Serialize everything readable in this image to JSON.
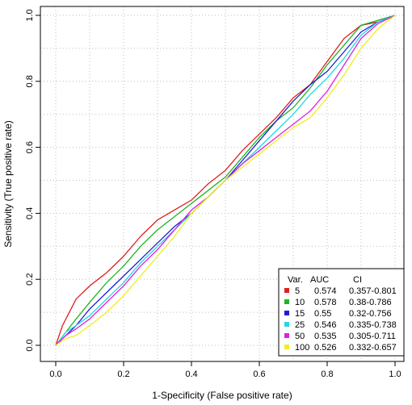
{
  "chart_data": {
    "type": "line",
    "xlabel": "1-Specificity (False positive rate)",
    "ylabel": "Sensitivity (True positive rate)",
    "xlim": [
      0,
      1
    ],
    "ylim": [
      0,
      1
    ],
    "xticks": [
      0.0,
      0.2,
      0.4,
      0.6,
      0.8,
      1.0
    ],
    "yticks": [
      0.0,
      0.2,
      0.4,
      0.6,
      0.8,
      1.0
    ],
    "xtick_labels": [
      "0.0",
      "0.2",
      "0.4",
      "0.6",
      "0.8",
      "1.0"
    ],
    "ytick_labels": [
      "0.0",
      "0.2",
      "0.4",
      "0.6",
      "0.8",
      "1.0"
    ],
    "grid": true,
    "legend": {
      "placement": "bottom-right",
      "header": {
        "var": "Var.",
        "auc": "AUC",
        "ci": "CI"
      }
    },
    "series": [
      {
        "name": "5",
        "auc": "0.574",
        "ci": "0.357-0.801",
        "color": "#DF1F1F",
        "x": [
          0,
          0.02,
          0.04,
          0.06,
          0.1,
          0.15,
          0.2,
          0.25,
          0.3,
          0.35,
          0.4,
          0.45,
          0.5,
          0.55,
          0.6,
          0.65,
          0.7,
          0.75,
          0.8,
          0.85,
          0.9,
          0.95,
          1.0
        ],
        "y": [
          0,
          0.06,
          0.1,
          0.14,
          0.18,
          0.22,
          0.27,
          0.33,
          0.38,
          0.41,
          0.44,
          0.49,
          0.53,
          0.59,
          0.64,
          0.69,
          0.75,
          0.79,
          0.86,
          0.93,
          0.97,
          0.98,
          1.0
        ]
      },
      {
        "name": "10",
        "auc": "0.578",
        "ci": "0.38-0.786",
        "color": "#22B322",
        "x": [
          0,
          0.03,
          0.06,
          0.1,
          0.15,
          0.2,
          0.25,
          0.3,
          0.35,
          0.4,
          0.45,
          0.5,
          0.55,
          0.6,
          0.65,
          0.7,
          0.75,
          0.8,
          0.85,
          0.9,
          0.95,
          1.0
        ],
        "y": [
          0,
          0.04,
          0.08,
          0.13,
          0.19,
          0.24,
          0.3,
          0.35,
          0.39,
          0.43,
          0.47,
          0.51,
          0.57,
          0.63,
          0.68,
          0.72,
          0.78,
          0.85,
          0.91,
          0.97,
          0.985,
          1.0
        ]
      },
      {
        "name": "15",
        "auc": "0.55",
        "ci": "0.32-0.756",
        "color": "#1C1CD9",
        "x": [
          0,
          0.03,
          0.06,
          0.1,
          0.15,
          0.2,
          0.25,
          0.3,
          0.35,
          0.4,
          0.45,
          0.5,
          0.55,
          0.6,
          0.65,
          0.7,
          0.75,
          0.8,
          0.85,
          0.9,
          0.95,
          1.0
        ],
        "y": [
          0,
          0.03,
          0.06,
          0.11,
          0.16,
          0.21,
          0.26,
          0.31,
          0.36,
          0.4,
          0.45,
          0.5,
          0.56,
          0.62,
          0.68,
          0.74,
          0.79,
          0.83,
          0.89,
          0.95,
          0.98,
          1.0
        ]
      },
      {
        "name": "25",
        "auc": "0.546",
        "ci": "0.335-0.738",
        "color": "#22D7E2",
        "x": [
          0,
          0.03,
          0.06,
          0.1,
          0.15,
          0.2,
          0.25,
          0.3,
          0.35,
          0.4,
          0.45,
          0.5,
          0.55,
          0.6,
          0.65,
          0.7,
          0.75,
          0.8,
          0.85,
          0.9,
          0.95,
          1.0
        ],
        "y": [
          0,
          0.04,
          0.06,
          0.09,
          0.14,
          0.19,
          0.25,
          0.3,
          0.35,
          0.4,
          0.45,
          0.5,
          0.55,
          0.6,
          0.65,
          0.7,
          0.76,
          0.81,
          0.87,
          0.94,
          0.98,
          1.0
        ]
      },
      {
        "name": "50",
        "auc": "0.535",
        "ci": "0.305-0.711",
        "color": "#DD22DD",
        "x": [
          0,
          0.03,
          0.06,
          0.1,
          0.15,
          0.2,
          0.25,
          0.3,
          0.35,
          0.4,
          0.45,
          0.5,
          0.55,
          0.6,
          0.65,
          0.7,
          0.75,
          0.8,
          0.85,
          0.9,
          0.95,
          1.0
        ],
        "y": [
          0,
          0.03,
          0.05,
          0.08,
          0.13,
          0.18,
          0.24,
          0.29,
          0.35,
          0.41,
          0.45,
          0.5,
          0.55,
          0.59,
          0.63,
          0.67,
          0.71,
          0.77,
          0.85,
          0.93,
          0.975,
          1.0
        ]
      },
      {
        "name": "100",
        "auc": "0.526",
        "ci": "0.332-0.657",
        "color": "#EEEE22",
        "x": [
          0,
          0.03,
          0.06,
          0.1,
          0.15,
          0.2,
          0.25,
          0.3,
          0.35,
          0.4,
          0.45,
          0.5,
          0.55,
          0.6,
          0.65,
          0.7,
          0.75,
          0.8,
          0.85,
          0.9,
          0.95,
          1.0
        ],
        "y": [
          0,
          0.02,
          0.03,
          0.06,
          0.1,
          0.15,
          0.21,
          0.27,
          0.33,
          0.4,
          0.45,
          0.5,
          0.54,
          0.58,
          0.62,
          0.66,
          0.69,
          0.75,
          0.82,
          0.9,
          0.96,
          1.0
        ]
      }
    ]
  }
}
